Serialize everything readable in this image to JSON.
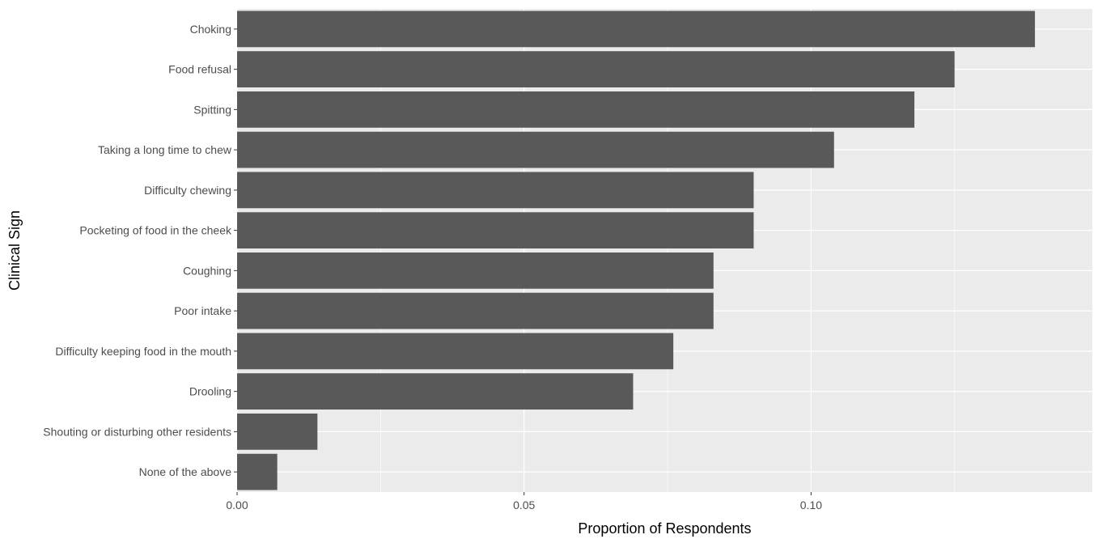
{
  "chart_data": {
    "type": "bar",
    "orientation": "horizontal",
    "categories": [
      "Choking",
      "Food refusal",
      "Spitting",
      "Taking a long time to chew",
      "Difficulty chewing",
      "Pocketing of food in the cheek",
      "Coughing",
      "Poor intake",
      "Difficulty keeping food in the mouth",
      "Drooling",
      "Shouting or disturbing other residents",
      "None of the above"
    ],
    "values": [
      0.139,
      0.125,
      0.118,
      0.104,
      0.09,
      0.09,
      0.083,
      0.083,
      0.076,
      0.069,
      0.014,
      0.007
    ],
    "xlabel": "Proportion of Respondents",
    "ylabel": "Clinical Sign",
    "xlim": [
      0,
      0.149
    ],
    "x_ticks": [
      0.0,
      0.05,
      0.1
    ],
    "x_tick_labels": [
      "0.00",
      "0.05",
      "0.10"
    ],
    "grid": true,
    "bar_color": "#595959",
    "panel_color": "#ebebeb",
    "grid_color": "#ffffff"
  }
}
